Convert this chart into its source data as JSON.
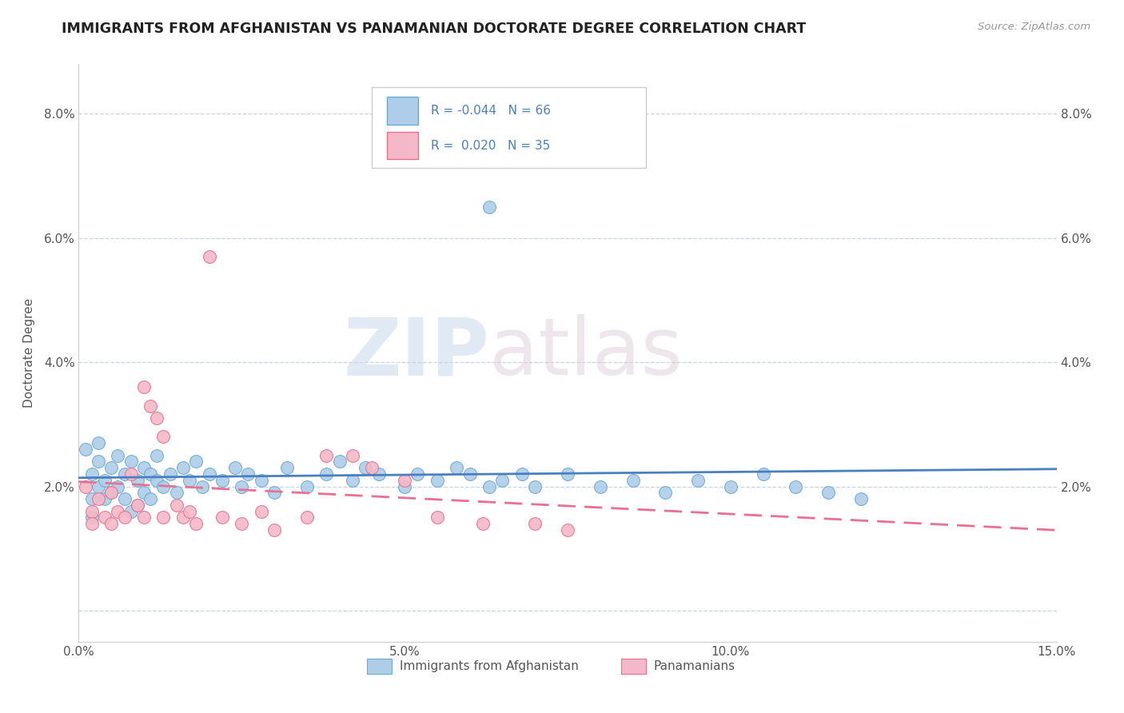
{
  "title": "IMMIGRANTS FROM AFGHANISTAN VS PANAMANIAN DOCTORATE DEGREE CORRELATION CHART",
  "source_text": "Source: ZipAtlas.com",
  "ylabel": "Doctorate Degree",
  "xlim": [
    0.0,
    0.15
  ],
  "ylim": [
    -0.005,
    0.088
  ],
  "xticks": [
    0.0,
    0.05,
    0.1,
    0.15
  ],
  "xtick_labels": [
    "0.0%",
    "5.0%",
    "10.0%",
    "15.0%"
  ],
  "yticks": [
    0.0,
    0.02,
    0.04,
    0.06,
    0.08
  ],
  "ytick_labels": [
    "",
    "2.0%",
    "4.0%",
    "6.0%",
    "8.0%"
  ],
  "color_blue": "#aecde8",
  "color_pink": "#f4b8c8",
  "color_blue_edge": "#6aaad4",
  "color_pink_edge": "#e8708a",
  "color_blue_line": "#4a7fc1",
  "color_pink_line": "#e87090",
  "color_text_blue": "#4a7fc1",
  "watermark_zip": "ZIP",
  "watermark_atlas": "atlas",
  "scatter_blue": [
    [
      0.001,
      0.026
    ],
    [
      0.002,
      0.022
    ],
    [
      0.002,
      0.018
    ],
    [
      0.003,
      0.024
    ],
    [
      0.003,
      0.02
    ],
    [
      0.004,
      0.021
    ],
    [
      0.004,
      0.018
    ],
    [
      0.005,
      0.023
    ],
    [
      0.005,
      0.019
    ],
    [
      0.006,
      0.025
    ],
    [
      0.006,
      0.02
    ],
    [
      0.007,
      0.022
    ],
    [
      0.007,
      0.018
    ],
    [
      0.008,
      0.024
    ],
    [
      0.008,
      0.016
    ],
    [
      0.009,
      0.021
    ],
    [
      0.009,
      0.017
    ],
    [
      0.01,
      0.023
    ],
    [
      0.01,
      0.019
    ],
    [
      0.011,
      0.022
    ],
    [
      0.011,
      0.018
    ],
    [
      0.012,
      0.021
    ],
    [
      0.012,
      0.025
    ],
    [
      0.013,
      0.02
    ],
    [
      0.014,
      0.022
    ],
    [
      0.015,
      0.019
    ],
    [
      0.016,
      0.023
    ],
    [
      0.017,
      0.021
    ],
    [
      0.018,
      0.024
    ],
    [
      0.019,
      0.02
    ],
    [
      0.02,
      0.022
    ],
    [
      0.022,
      0.021
    ],
    [
      0.024,
      0.023
    ],
    [
      0.025,
      0.02
    ],
    [
      0.026,
      0.022
    ],
    [
      0.028,
      0.021
    ],
    [
      0.03,
      0.019
    ],
    [
      0.032,
      0.023
    ],
    [
      0.035,
      0.02
    ],
    [
      0.038,
      0.022
    ],
    [
      0.04,
      0.024
    ],
    [
      0.042,
      0.021
    ],
    [
      0.044,
      0.023
    ],
    [
      0.046,
      0.022
    ],
    [
      0.05,
      0.02
    ],
    [
      0.052,
      0.022
    ],
    [
      0.055,
      0.021
    ],
    [
      0.058,
      0.023
    ],
    [
      0.06,
      0.022
    ],
    [
      0.063,
      0.02
    ],
    [
      0.063,
      0.065
    ],
    [
      0.065,
      0.021
    ],
    [
      0.068,
      0.022
    ],
    [
      0.07,
      0.02
    ],
    [
      0.075,
      0.022
    ],
    [
      0.08,
      0.02
    ],
    [
      0.085,
      0.021
    ],
    [
      0.09,
      0.019
    ],
    [
      0.095,
      0.021
    ],
    [
      0.1,
      0.02
    ],
    [
      0.105,
      0.022
    ],
    [
      0.11,
      0.02
    ],
    [
      0.115,
      0.019
    ],
    [
      0.12,
      0.018
    ],
    [
      0.003,
      0.027
    ],
    [
      0.002,
      0.015
    ]
  ],
  "scatter_pink": [
    [
      0.001,
      0.02
    ],
    [
      0.002,
      0.016
    ],
    [
      0.002,
      0.014
    ],
    [
      0.003,
      0.018
    ],
    [
      0.004,
      0.015
    ],
    [
      0.005,
      0.019
    ],
    [
      0.005,
      0.014
    ],
    [
      0.006,
      0.016
    ],
    [
      0.007,
      0.015
    ],
    [
      0.008,
      0.022
    ],
    [
      0.009,
      0.017
    ],
    [
      0.01,
      0.015
    ],
    [
      0.01,
      0.036
    ],
    [
      0.011,
      0.033
    ],
    [
      0.012,
      0.031
    ],
    [
      0.013,
      0.028
    ],
    [
      0.013,
      0.015
    ],
    [
      0.015,
      0.017
    ],
    [
      0.016,
      0.015
    ],
    [
      0.017,
      0.016
    ],
    [
      0.018,
      0.014
    ],
    [
      0.02,
      0.057
    ],
    [
      0.022,
      0.015
    ],
    [
      0.025,
      0.014
    ],
    [
      0.028,
      0.016
    ],
    [
      0.03,
      0.013
    ],
    [
      0.035,
      0.015
    ],
    [
      0.038,
      0.025
    ],
    [
      0.042,
      0.025
    ],
    [
      0.045,
      0.023
    ],
    [
      0.05,
      0.021
    ],
    [
      0.055,
      0.015
    ],
    [
      0.062,
      0.014
    ],
    [
      0.07,
      0.014
    ],
    [
      0.075,
      0.013
    ]
  ]
}
